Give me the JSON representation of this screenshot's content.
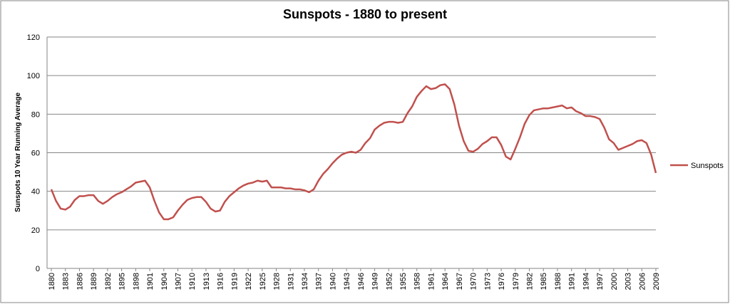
{
  "chart_data": {
    "type": "line",
    "title": "Sunspots - 1880 to present",
    "y_label": "Sunspots 10 Year Running Average",
    "x": [
      1880,
      1881,
      1882,
      1883,
      1884,
      1885,
      1886,
      1887,
      1888,
      1889,
      1890,
      1891,
      1892,
      1893,
      1894,
      1895,
      1896,
      1897,
      1898,
      1899,
      1900,
      1901,
      1902,
      1903,
      1904,
      1905,
      1906,
      1907,
      1908,
      1909,
      1910,
      1911,
      1912,
      1913,
      1914,
      1915,
      1916,
      1917,
      1918,
      1919,
      1920,
      1921,
      1922,
      1923,
      1924,
      1925,
      1926,
      1927,
      1928,
      1929,
      1930,
      1931,
      1932,
      1933,
      1934,
      1935,
      1936,
      1937,
      1938,
      1939,
      1940,
      1941,
      1942,
      1943,
      1944,
      1945,
      1946,
      1947,
      1948,
      1949,
      1950,
      1951,
      1952,
      1953,
      1954,
      1955,
      1956,
      1957,
      1958,
      1959,
      1960,
      1961,
      1962,
      1963,
      1964,
      1965,
      1966,
      1967,
      1968,
      1969,
      1970,
      1971,
      1972,
      1973,
      1974,
      1975,
      1976,
      1977,
      1978,
      1979,
      1980,
      1981,
      1982,
      1983,
      1984,
      1985,
      1986,
      1987,
      1988,
      1989,
      1990,
      1991,
      1992,
      1993,
      1994,
      1995,
      1996,
      1997,
      1998,
      1999,
      2000,
      2001,
      2002,
      2003,
      2004,
      2005,
      2006,
      2007,
      2008,
      2009
    ],
    "series": [
      {
        "name": "Sunspots",
        "color": "#c0504d",
        "values": [
          41,
          35,
          31,
          30.5,
          32,
          35.5,
          37.5,
          37.5,
          38,
          38,
          35,
          33.5,
          35,
          37,
          38.5,
          39.5,
          41,
          42.5,
          44.5,
          45,
          45.5,
          42,
          35,
          29,
          25.5,
          25.5,
          26.5,
          30,
          33,
          35.5,
          36.5,
          37,
          37,
          34.5,
          31,
          29.5,
          30,
          34.5,
          37.5,
          39.5,
          41.5,
          43,
          44,
          44.5,
          45.5,
          45,
          45.5,
          42,
          42,
          42,
          41.5,
          41.5,
          41,
          41,
          40.5,
          39.5,
          41,
          45.5,
          49,
          51.5,
          54.5,
          57,
          59,
          60,
          60.5,
          60,
          61.5,
          65,
          67.5,
          72,
          74,
          75.5,
          76,
          76,
          75.5,
          76,
          80.5,
          84,
          89,
          92,
          94.5,
          93,
          93.5,
          95,
          95.5,
          93,
          85,
          74,
          66,
          61,
          60.5,
          62,
          64.5,
          66,
          68,
          68,
          64,
          58,
          56.5,
          62,
          68,
          75,
          79.5,
          82,
          82.5,
          83,
          83,
          83.5,
          84,
          84.5,
          83,
          83.5,
          81.5,
          80.5,
          79,
          79,
          78.5,
          77.5,
          73,
          67,
          65,
          61.5,
          62.5,
          63.5,
          64.5,
          66,
          66.5,
          65,
          59,
          49.5
        ]
      }
    ],
    "xlim": [
      1880,
      2009
    ],
    "xticks": [
      1880,
      1883,
      1886,
      1889,
      1892,
      1895,
      1898,
      1901,
      1904,
      1907,
      1910,
      1913,
      1916,
      1919,
      1922,
      1925,
      1928,
      1931,
      1934,
      1937,
      1940,
      1943,
      1946,
      1949,
      1952,
      1955,
      1958,
      1961,
      1964,
      1967,
      1970,
      1973,
      1976,
      1979,
      1982,
      1985,
      1988,
      1991,
      1994,
      1997,
      2000,
      2003,
      2006,
      2009
    ],
    "ylim": [
      0,
      120
    ],
    "yticks": [
      0,
      20,
      40,
      60,
      80,
      100,
      120
    ],
    "grid": true,
    "legend": "right"
  }
}
